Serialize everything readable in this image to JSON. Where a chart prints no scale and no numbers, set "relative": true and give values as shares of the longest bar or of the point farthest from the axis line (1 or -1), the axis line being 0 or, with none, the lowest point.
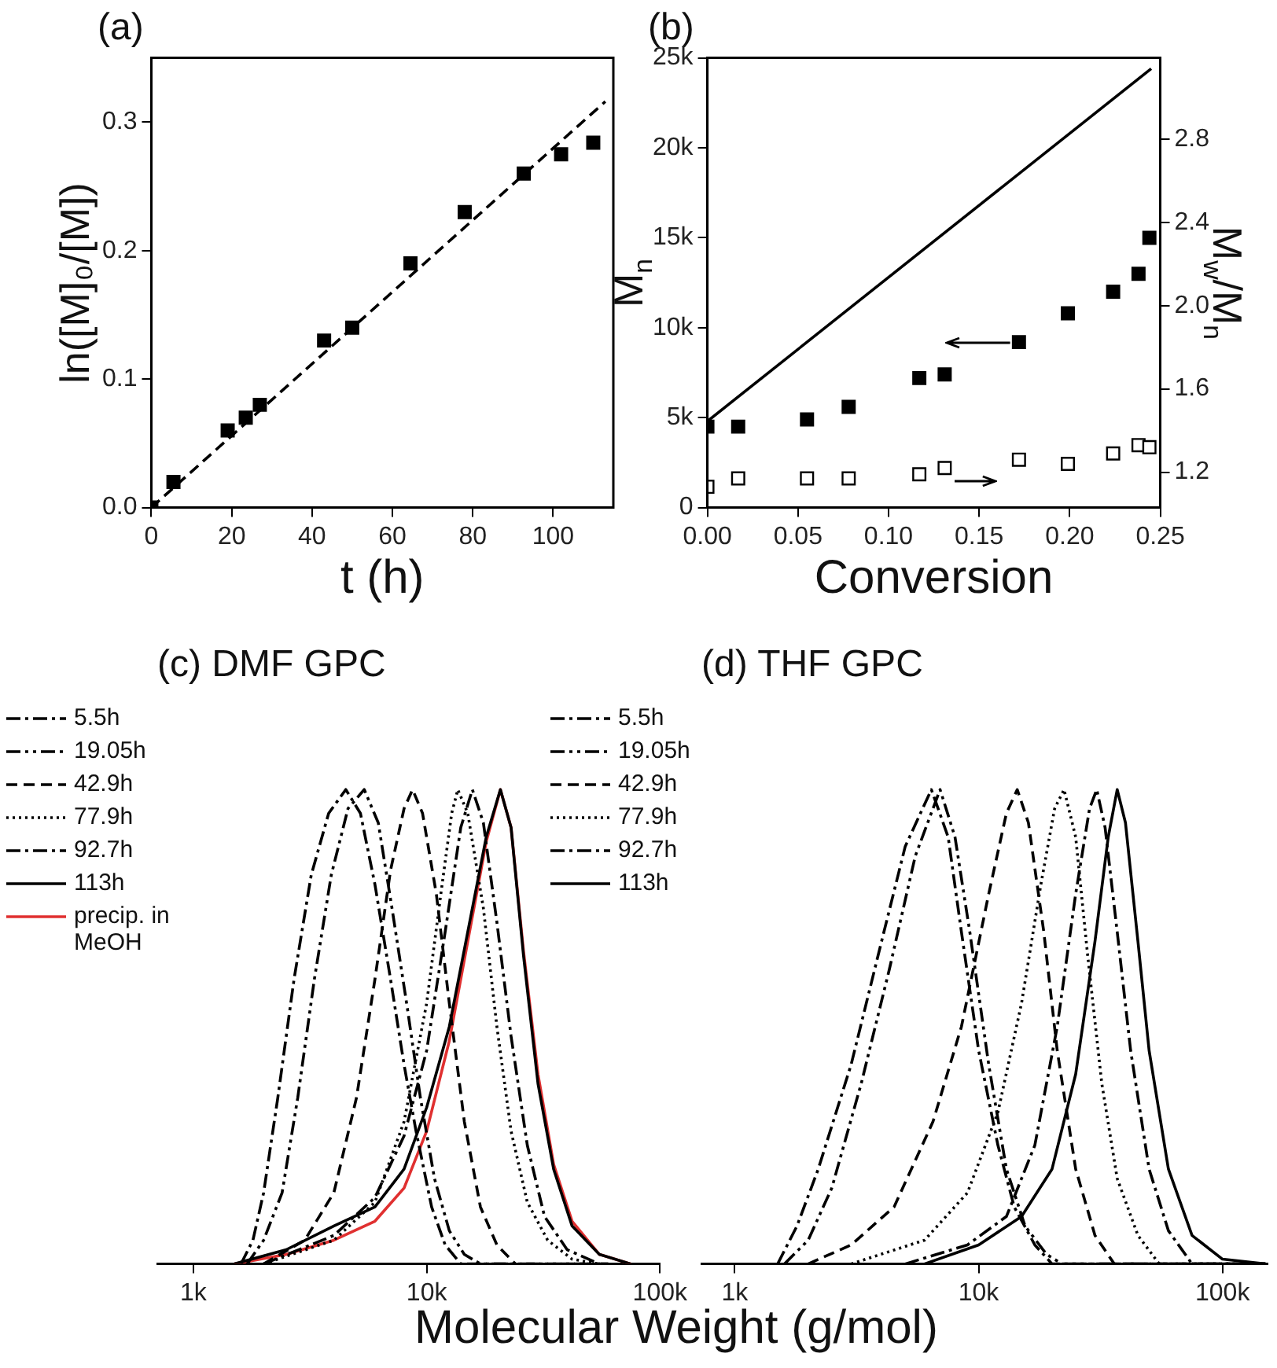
{
  "chart_data": [
    {
      "type": "scatter",
      "title": "(a)",
      "xlabel": "t (h)",
      "ylabel": "ln([M]₀/[M])",
      "marker": "square",
      "xlim": [
        0,
        115
      ],
      "xticks": [
        0,
        20,
        40,
        60,
        80,
        100
      ],
      "ylim": [
        0,
        0.35
      ],
      "yticks": [
        {
          "value": 0,
          "label": "0.0"
        },
        0.1,
        0.2,
        0.3
      ],
      "series": [
        {
          "color": "#000000",
          "x": [
            0,
            5.5,
            19,
            23.5,
            27,
            43,
            50,
            64.5,
            78,
            92.7,
            102,
            110
          ],
          "values": [
            0,
            0.02,
            0.06,
            0.07,
            0.08,
            0.13,
            0.14,
            0.19,
            0.23,
            0.26,
            0.275,
            0.284
          ]
        },
        {
          "type": "line",
          "color": "#000000",
          "marker": "none",
          "line_style": "dashed",
          "x": [
            0,
            113
          ],
          "values": [
            0,
            0.316
          ]
        }
      ]
    },
    {
      "type": "scatter",
      "title": "(b)",
      "xlabel": "Conversion",
      "ylabel": "M$_{n}$",
      "y2label": "M$_{w}$/M$_{n}$",
      "marker": "square",
      "xlim": [
        0,
        0.25
      ],
      "xticks": [
        {
          "value": 0,
          "label": "0.00"
        },
        0.05,
        {
          "value": 0.1,
          "label": "0.10"
        },
        0.15,
        {
          "value": 0.2,
          "label": "0.20"
        },
        0.25
      ],
      "ylim": [
        0,
        25000
      ],
      "yticks": [
        0,
        {
          "value": 5000,
          "label": "5k"
        },
        {
          "value": 10000,
          "label": "10k"
        },
        {
          "value": 15000,
          "label": "15k"
        },
        {
          "value": 20000,
          "label": "20k"
        },
        {
          "value": 25000,
          "label": "25k"
        }
      ],
      "y2lim": [
        1.03,
        3.19
      ],
      "y2ticks": [
        1.2,
        1.6,
        {
          "value": 2,
          "label": "2.0"
        },
        2.4,
        2.8
      ],
      "series": [
        {
          "color": "#000000",
          "x": [
            0,
            0.017,
            0.055,
            0.078,
            0.117,
            0.131,
            0.172,
            0.199,
            0.224,
            0.238,
            0.244
          ],
          "values": [
            4500,
            4500,
            4900,
            5600,
            7200,
            7400,
            9200,
            10800,
            12000,
            13000,
            15000
          ]
        },
        {
          "color": "#000000",
          "axis": "y2",
          "marker": "square-open",
          "x": [
            0,
            0.017,
            0.055,
            0.078,
            0.117,
            0.131,
            0.172,
            0.199,
            0.224,
            0.238,
            0.244
          ],
          "values": [
            1.13,
            1.17,
            1.17,
            1.17,
            1.19,
            1.22,
            1.26,
            1.24,
            1.29,
            1.33,
            1.32
          ]
        },
        {
          "type": "line",
          "color": "#000000",
          "marker": "none",
          "line_style": "solid",
          "x": [
            0,
            0.245
          ],
          "values": [
            4800,
            24400
          ]
        }
      ]
    },
    {
      "type": "line",
      "title": "(c) DMF GPC",
      "xlabel": "Molecular Weight (g/mol)",
      "relative": true,
      "log": "x",
      "legend": "left",
      "tick_labels": "x",
      "xlim": [
        700,
        100000
      ],
      "xticks": [
        {
          "value": 1000,
          "label": "1k"
        },
        {
          "value": 10000,
          "label": "10k"
        },
        {
          "value": 100000,
          "label": "100k"
        }
      ],
      "series": [
        {
          "name": "5.5h",
          "color": "#000000",
          "line_style": "dashdot",
          "x": [
            1600,
            1800,
            2000,
            2300,
            2700,
            3200,
            3800,
            4500,
            5200,
            6000,
            7000,
            8000,
            9000,
            10500,
            12000,
            14000,
            60000
          ],
          "values": [
            0,
            0.05,
            0.15,
            0.35,
            0.6,
            0.82,
            0.95,
            1,
            0.95,
            0.8,
            0.6,
            0.42,
            0.28,
            0.12,
            0.04,
            0,
            0
          ]
        },
        {
          "name": "19.05h",
          "color": "#000000",
          "line_style": "dashdotdot",
          "x": [
            1700,
            2000,
            2400,
            2800,
            3300,
            3900,
            4600,
            5400,
            6200,
            7100,
            8200,
            9400,
            10800,
            12500,
            14500,
            17000,
            60000
          ],
          "values": [
            0,
            0.05,
            0.15,
            0.35,
            0.6,
            0.82,
            0.96,
            1,
            0.93,
            0.75,
            0.55,
            0.35,
            0.18,
            0.07,
            0.02,
            0,
            0
          ]
        },
        {
          "name": "42.9h",
          "color": "#000000",
          "line_style": "dashed",
          "x": [
            2000,
            3000,
            4000,
            5000,
            6000,
            7000,
            8000,
            8700,
            9600,
            11000,
            12500,
            14500,
            17000,
            20000,
            24000
          ],
          "values": [
            0,
            0.05,
            0.15,
            0.35,
            0.6,
            0.83,
            0.96,
            1,
            0.95,
            0.78,
            0.55,
            0.3,
            0.12,
            0.04,
            0
          ]
        },
        {
          "name": "77.9h",
          "color": "#000000",
          "line_style": "dotted",
          "x": [
            2000,
            4000,
            6000,
            8000,
            10000,
            11500,
            12800,
            13600,
            15000,
            17500,
            20000,
            23000,
            27000,
            33000,
            42000,
            55000
          ],
          "values": [
            0,
            0.05,
            0.13,
            0.3,
            0.55,
            0.78,
            0.95,
            1,
            0.95,
            0.75,
            0.5,
            0.28,
            0.13,
            0.05,
            0.01,
            0
          ]
        },
        {
          "name": "92.7h",
          "color": "#000000",
          "line_style": "dashdot",
          "x": [
            2000,
            4000,
            6000,
            8000,
            10000,
            12000,
            14000,
            15700,
            17500,
            20000,
            23000,
            27000,
            32000,
            40000,
            55000
          ],
          "values": [
            0,
            0.06,
            0.14,
            0.27,
            0.45,
            0.7,
            0.92,
            1,
            0.93,
            0.72,
            0.48,
            0.25,
            0.1,
            0.03,
            0
          ]
        },
        {
          "name": "113h",
          "color": "#000000",
          "line_style": "solid",
          "x": [
            1500,
            2500,
            4000,
            6000,
            8000,
            10000,
            12500,
            15000,
            18000,
            20700,
            23000,
            26000,
            30000,
            35000,
            42000,
            55000,
            75000
          ],
          "values": [
            0,
            0.03,
            0.08,
            0.12,
            0.2,
            0.33,
            0.5,
            0.7,
            0.9,
            1,
            0.92,
            0.65,
            0.38,
            0.2,
            0.08,
            0.02,
            0
          ]
        },
        {
          "name": "precip. in MeOH",
          "color": "#e03030",
          "line_style": "solid",
          "x": [
            1500,
            2500,
            4000,
            6000,
            8000,
            10000,
            12500,
            15000,
            18000,
            20700,
            23000,
            26000,
            30000,
            35000,
            42000,
            55000,
            75000
          ],
          "values": [
            0,
            0.02,
            0.05,
            0.09,
            0.16,
            0.28,
            0.47,
            0.68,
            0.89,
            1,
            0.92,
            0.66,
            0.4,
            0.21,
            0.09,
            0.02,
            0
          ]
        }
      ]
    },
    {
      "type": "line",
      "title": "(d) THF GPC",
      "relative": true,
      "log": "x",
      "legend": "left",
      "tick_labels": "x",
      "xlim": [
        730,
        153000
      ],
      "xticks": [
        {
          "value": 1000,
          "label": "1k"
        },
        {
          "value": 10000,
          "label": "10k"
        },
        {
          "value": 100000,
          "label": "100k"
        }
      ],
      "series": [
        {
          "name": "5.5h",
          "color": "#000000",
          "line_style": "dashdot",
          "x": [
            1500,
            1800,
            2200,
            3000,
            4000,
            5000,
            6400,
            7500,
            8500,
            10000,
            12000,
            14000,
            17000,
            20000,
            150000
          ],
          "values": [
            0,
            0.08,
            0.2,
            0.42,
            0.68,
            0.88,
            1,
            0.9,
            0.7,
            0.45,
            0.25,
            0.12,
            0.04,
            0,
            0
          ]
        },
        {
          "name": "19.05h",
          "color": "#000000",
          "line_style": "dashdotdot",
          "x": [
            1600,
            2000,
            2500,
            3300,
            4300,
            5500,
            6950,
            8000,
            9200,
            11000,
            13000,
            15500,
            19000,
            22000,
            150000
          ],
          "values": [
            0,
            0.05,
            0.16,
            0.38,
            0.62,
            0.86,
            1,
            0.9,
            0.7,
            0.42,
            0.2,
            0.08,
            0.02,
            0,
            0
          ]
        },
        {
          "name": "42.9h",
          "color": "#000000",
          "line_style": "dashed",
          "x": [
            2000,
            3000,
            4500,
            6500,
            8500,
            11000,
            13000,
            14400,
            16000,
            18500,
            21000,
            25000,
            30000,
            36000,
            150000
          ],
          "values": [
            0,
            0.04,
            0.12,
            0.3,
            0.5,
            0.78,
            0.95,
            1,
            0.93,
            0.7,
            0.45,
            0.2,
            0.06,
            0,
            0
          ]
        },
        {
          "name": "77.9h",
          "color": "#000000",
          "line_style": "dotted",
          "x": [
            3000,
            6000,
            9000,
            12000,
            15000,
            18000,
            20500,
            22400,
            25000,
            28000,
            32000,
            37000,
            45000,
            55000,
            150000
          ],
          "values": [
            0,
            0.05,
            0.15,
            0.32,
            0.55,
            0.8,
            0.96,
            1,
            0.9,
            0.65,
            0.38,
            0.18,
            0.06,
            0,
            0
          ]
        },
        {
          "name": "92.7h",
          "color": "#000000",
          "line_style": "dashdot",
          "x": [
            5000,
            9000,
            13000,
            17000,
            21000,
            25000,
            28500,
            30500,
            33000,
            37000,
            42000,
            50000,
            60000,
            75000,
            150000
          ],
          "values": [
            0,
            0.04,
            0.1,
            0.25,
            0.5,
            0.78,
            0.96,
            1,
            0.92,
            0.7,
            0.45,
            0.2,
            0.07,
            0,
            0
          ]
        },
        {
          "name": "113h",
          "color": "#000000",
          "line_style": "solid",
          "x": [
            6000,
            10000,
            15000,
            20000,
            25000,
            30000,
            34000,
            37000,
            40000,
            45000,
            50000,
            60000,
            75000,
            100000,
            150000
          ],
          "values": [
            0,
            0.04,
            0.1,
            0.2,
            0.4,
            0.68,
            0.9,
            1,
            0.93,
            0.68,
            0.45,
            0.2,
            0.06,
            0.01,
            0
          ]
        }
      ]
    }
  ]
}
